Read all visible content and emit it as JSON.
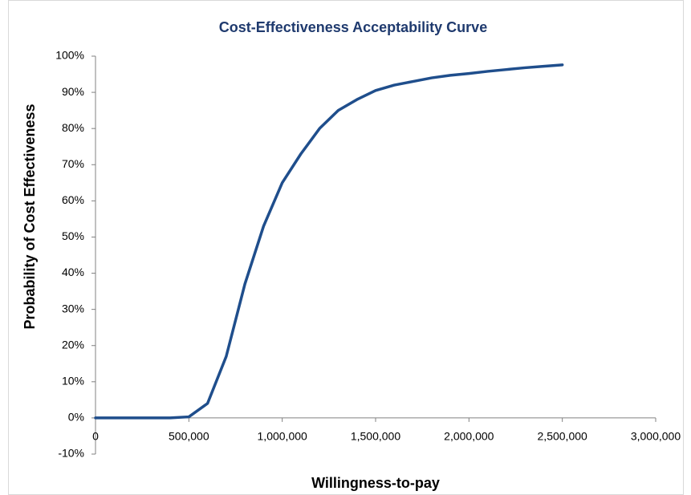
{
  "chart_data": {
    "type": "line",
    "title": "Cost-Effectiveness Acceptability Curve",
    "x_label": "Willingness-to-pay",
    "y_label": "Probability of Cost Effectiveness",
    "x": [
      0,
      100000,
      200000,
      300000,
      400000,
      500000,
      600000,
      700000,
      800000,
      900000,
      1000000,
      1100000,
      1200000,
      1300000,
      1400000,
      1500000,
      1600000,
      1700000,
      1800000,
      1900000,
      2000000,
      2100000,
      2200000,
      2300000,
      2400000,
      2500000
    ],
    "series": [
      {
        "color": "#1f4e8c",
        "values": [
          0,
          0,
          0,
          0,
          0,
          0.3,
          4,
          17,
          37,
          53,
          65,
          73,
          80,
          85,
          88,
          90.5,
          92,
          93,
          94,
          94.7,
          95.2,
          95.8,
          96.3,
          96.8,
          97.2,
          97.6
        ]
      }
    ],
    "xlim": [
      0,
      3000000
    ],
    "xticks": [
      0,
      {
        "value": 500000,
        "label": "500,000"
      },
      {
        "value": 1000000,
        "label": "1,000,000"
      },
      {
        "value": 1500000,
        "label": "1,500,000"
      },
      {
        "value": 2000000,
        "label": "2,000,000"
      },
      {
        "value": 2500000,
        "label": "2,500,000"
      },
      {
        "value": 3000000,
        "label": "3,000,000"
      }
    ],
    "ylim": [
      -10,
      100
    ],
    "yticks": [
      {
        "value": -10,
        "label": "-10%"
      },
      {
        "value": 0,
        "label": "0%"
      },
      {
        "value": 10,
        "label": "10%"
      },
      {
        "value": 20,
        "label": "20%"
      },
      {
        "value": 30,
        "label": "30%"
      },
      {
        "value": 40,
        "label": "40%"
      },
      {
        "value": 50,
        "label": "50%"
      },
      {
        "value": 60,
        "label": "60%"
      },
      {
        "value": 70,
        "label": "70%"
      },
      {
        "value": 80,
        "label": "80%"
      },
      {
        "value": 90,
        "label": "90%"
      },
      {
        "value": 100,
        "label": "100%"
      }
    ],
    "grid": false
  }
}
